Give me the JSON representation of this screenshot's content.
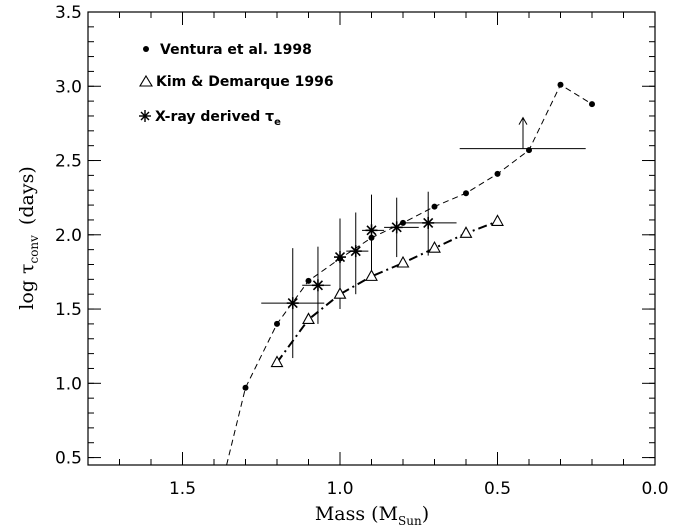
{
  "chart_data": {
    "type": "scatter",
    "xlabel": {
      "main": "Mass (M",
      "sub": "Sun",
      "close": ")"
    },
    "ylabel": {
      "main": "log τ",
      "sub": "conv",
      "rest": "(days)"
    },
    "xlim": [
      1.8,
      0.0
    ],
    "ylim": [
      0.45,
      3.5
    ],
    "x_ticks": [
      {
        "value": 1.5,
        "label": "1.5"
      },
      {
        "value": 1.0,
        "label": "1.0"
      },
      {
        "value": 0.5,
        "label": "0.5"
      },
      {
        "value": 0.0,
        "label": "0.0"
      }
    ],
    "y_ticks": [
      {
        "value": 0.5,
        "label": "0.5"
      },
      {
        "value": 1.0,
        "label": "1.0"
      },
      {
        "value": 1.5,
        "label": "1.5"
      },
      {
        "value": 2.0,
        "label": "2.0"
      },
      {
        "value": 2.5,
        "label": "2.5"
      },
      {
        "value": 3.0,
        "label": "3.0"
      },
      {
        "value": 3.5,
        "label": "3.5"
      }
    ],
    "x_minor_step": 0.1,
    "y_minor_step": 0.1,
    "grid": false,
    "legend_position": "top-left",
    "legend": [
      {
        "marker": "dot",
        "label": "Ventura et al. 1998"
      },
      {
        "marker": "triangle",
        "label": "Kim & Demarque 1996"
      },
      {
        "marker": "asterisk",
        "label": "X-ray derived τ",
        "sub": "e"
      }
    ],
    "series": [
      {
        "name": "Ventura et al. 1998",
        "marker": "dot",
        "line": "dashed",
        "x": [
          1.3,
          1.2,
          1.1,
          1.0,
          0.9,
          0.8,
          0.7,
          0.6,
          0.5,
          0.4,
          0.3,
          0.2
        ],
        "y": [
          0.97,
          1.4,
          1.69,
          1.84,
          1.98,
          2.08,
          2.19,
          2.28,
          2.41,
          2.57,
          3.01,
          2.88
        ],
        "line_x_start": 1.36,
        "line_y_start": 0.45
      },
      {
        "name": "Kim & Demarque 1996",
        "marker": "triangle",
        "line": "dash-dot",
        "x": [
          1.2,
          1.1,
          1.0,
          0.9,
          0.8,
          0.7,
          0.6,
          0.5
        ],
        "y": [
          1.14,
          1.43,
          1.6,
          1.72,
          1.81,
          1.91,
          2.01,
          2.09
        ]
      },
      {
        "name": "X-ray derived τe",
        "marker": "asterisk",
        "line": "none",
        "points": [
          {
            "x": 1.15,
            "y": 1.54,
            "xerr": [
              1.25,
              1.05
            ],
            "yerr": [
              1.17,
              1.91
            ]
          },
          {
            "x": 1.07,
            "y": 1.66,
            "xerr": [
              1.12,
              1.03
            ],
            "yerr": [
              1.4,
              1.92
            ]
          },
          {
            "x": 1.0,
            "y": 1.85,
            "yerr": [
              1.5,
              2.11
            ]
          },
          {
            "x": 0.95,
            "y": 1.89,
            "xerr": [
              0.98,
              0.91
            ],
            "yerr": [
              1.6,
              2.15
            ]
          },
          {
            "x": 0.9,
            "y": 2.03,
            "xerr": [
              0.93,
              0.86
            ],
            "yerr": [
              1.75,
              2.27
            ]
          },
          {
            "x": 0.82,
            "y": 2.05,
            "xerr": [
              0.86,
              0.75
            ],
            "yerr": [
              1.85,
              2.25
            ]
          },
          {
            "x": 0.72,
            "y": 2.08,
            "xerr": [
              0.81,
              0.63
            ],
            "yerr": [
              1.86,
              2.29
            ]
          },
          {
            "x": 0.4,
            "y": 2.58,
            "xerr": [
              0.62,
              0.22
            ],
            "lower_limit": true
          }
        ]
      }
    ]
  }
}
